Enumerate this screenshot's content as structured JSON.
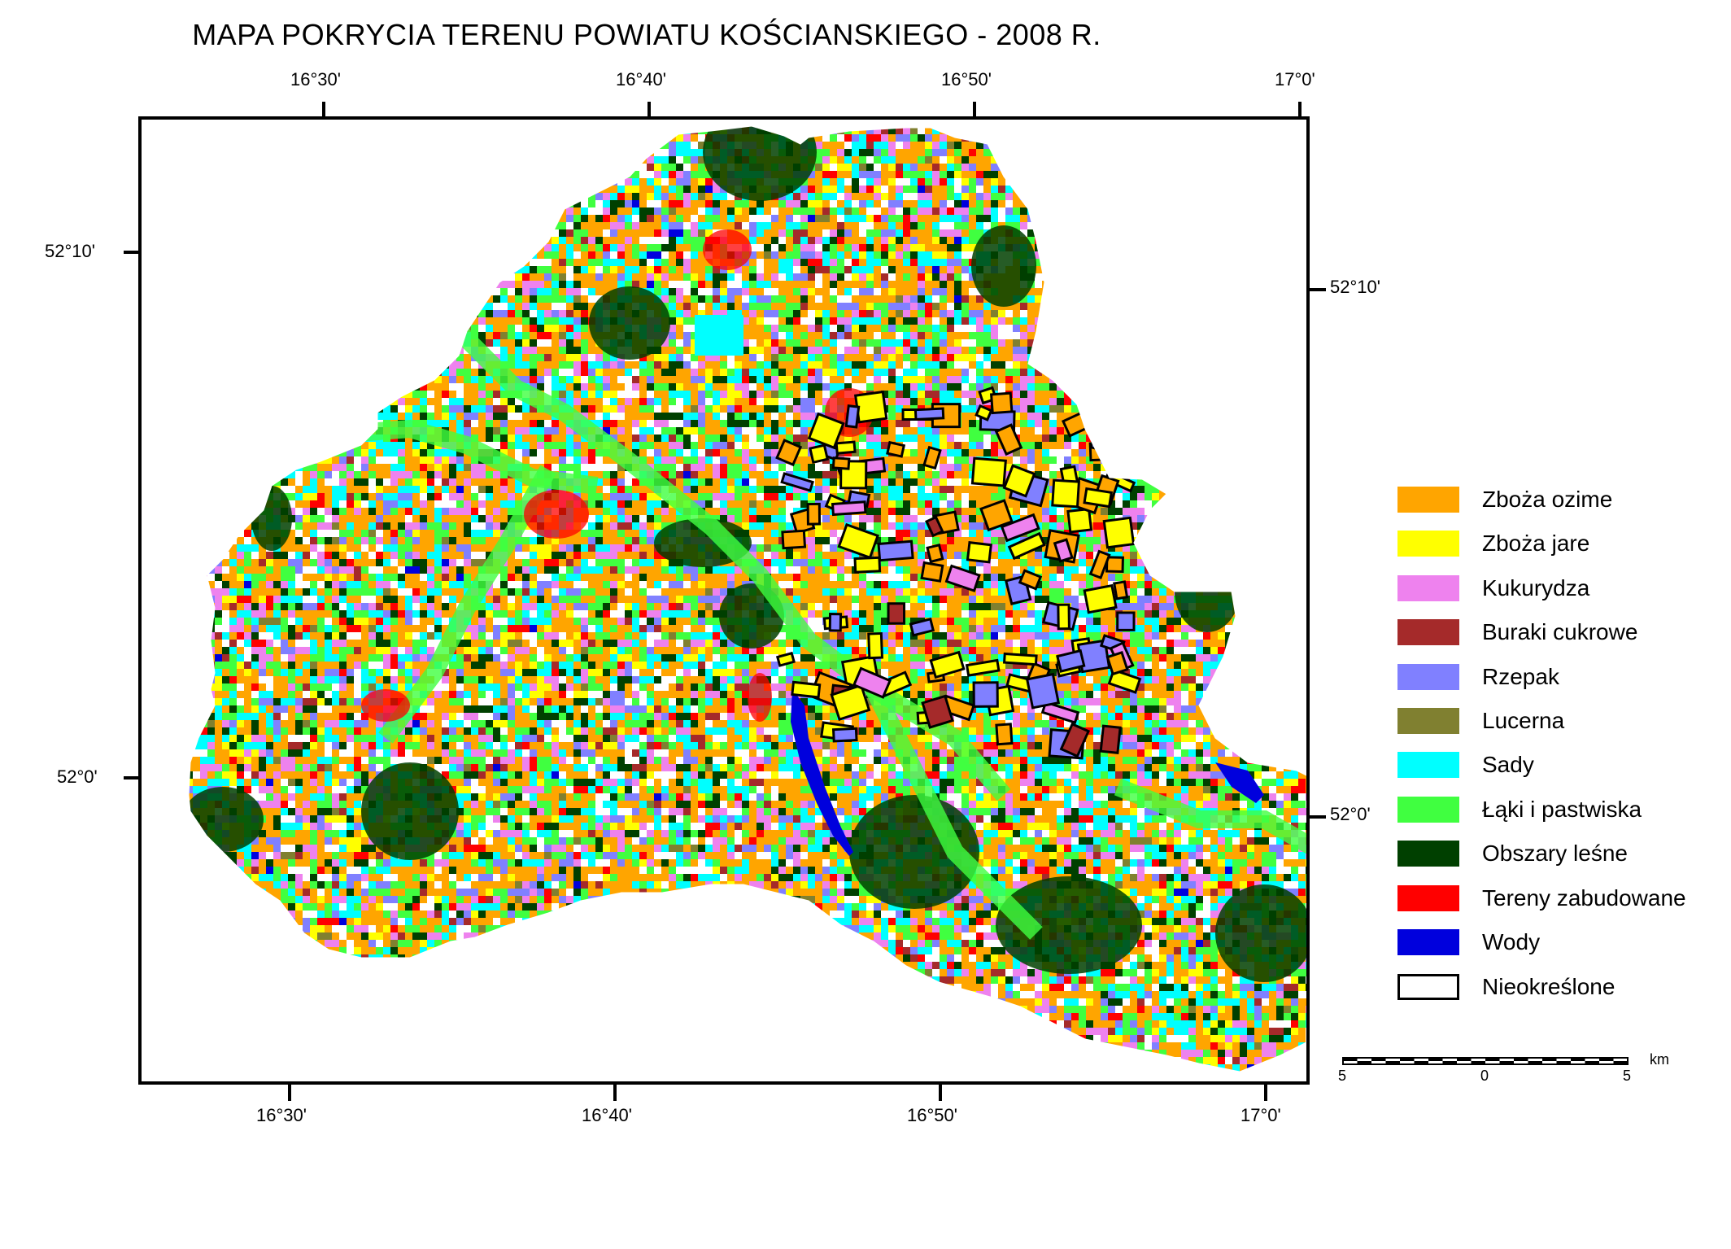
{
  "title": "MAPA POKRYCIA TERENU  POWIATU KOŚCIANSKIEGO - 2008 R.",
  "top_axis_labels": [
    "16°30'",
    "16°40'",
    "16°50'",
    "17°0'"
  ],
  "bottom_axis_labels": [
    "16°30'",
    "16°40'",
    "16°50'",
    "17°0'"
  ],
  "left_axis_labels": [
    "52°10'",
    "52°0'"
  ],
  "right_axis_labels": [
    "52°10'",
    "52°0'"
  ],
  "legend": [
    {
      "label": "Zboża ozime",
      "color": "#FFA500"
    },
    {
      "label": "Zboża jare",
      "color": "#FFFF00"
    },
    {
      "label": "Kukurydza",
      "color": "#EE82EE"
    },
    {
      "label": "Buraki cukrowe",
      "color": "#A52A2A"
    },
    {
      "label": "Rzepak",
      "color": "#8080FF"
    },
    {
      "label": "Lucerna",
      "color": "#808030"
    },
    {
      "label": "Sady",
      "color": "#00FFFF"
    },
    {
      "label": "Łąki i pastwiska",
      "color": "#40FF40"
    },
    {
      "label": "Obszary leśne",
      "color": "#004000"
    },
    {
      "label": "Tereny zabudowane",
      "color": "#FF0000"
    },
    {
      "label": "Wody",
      "color": "#0000DD"
    },
    {
      "label": "Nieokreślone",
      "color": "#FFFFFF"
    }
  ],
  "scalebar": {
    "left": "5",
    "middle": "0",
    "right": "5",
    "unit": "km"
  }
}
